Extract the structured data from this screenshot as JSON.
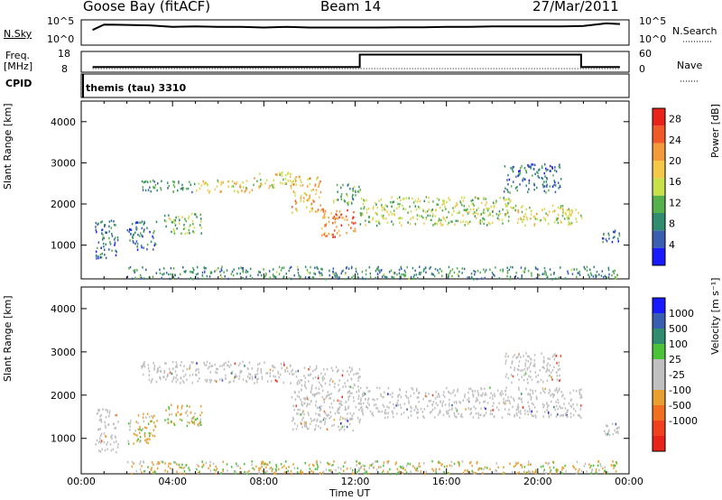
{
  "header": {
    "station": "Goose Bay (fitACF)",
    "beam": "Beam 14",
    "date": "27/Mar/2011"
  },
  "noise_panel": {
    "left_label": "N.Sky",
    "left_ticks": [
      "10^5",
      "10^0"
    ],
    "right_ticks": [
      "10^5",
      "10^0"
    ],
    "right_label": "N.Search"
  },
  "freq_panel": {
    "left_label_line1": "Freq.",
    "left_label_line2": "[MHz]",
    "left_ticks": [
      "18",
      "8"
    ],
    "right_ticks": [
      "60",
      "0"
    ],
    "right_label": "Nave",
    "cpid_label": "CPID"
  },
  "cpid_panel": {
    "mode_text": "themis (tau) 3310"
  },
  "colors": {
    "power_scale": [
      "#1a1aff",
      "#3b5fb0",
      "#2f8c6e",
      "#56b04c",
      "#c8e04a",
      "#f5c84a",
      "#f59a3a",
      "#f05a28",
      "#e8231a"
    ],
    "velocity_scale": [
      "#1a1aff",
      "#3b5fb0",
      "#2f8c6e",
      "#4cc23a",
      "#c0c0c0",
      "#c0c0c0",
      "#e8a030",
      "#f07020",
      "#f04020",
      "#e8231a"
    ],
    "ground_scatter": "#c0c0c0"
  },
  "chart_data": [
    {
      "type": "line",
      "title": "",
      "xlabel": "",
      "ylabel": "N.Sky",
      "xlim": [
        "00:00",
        "24:00"
      ],
      "series": [
        {
          "name": "N.Sky",
          "x": [
            0.5,
            1,
            2,
            3,
            4,
            5,
            6,
            7,
            8,
            9,
            10,
            11,
            12,
            13,
            14,
            15,
            16,
            17,
            18,
            19,
            20,
            21,
            22,
            23,
            23.6
          ],
          "values": [
            1000,
            12000,
            10000,
            8000,
            4000,
            5000,
            4000,
            4000,
            3000,
            4000,
            3000,
            3000,
            3000,
            3000,
            3500,
            3500,
            4000,
            4000,
            5000,
            5000,
            5000,
            5000,
            6000,
            20000,
            15000
          ]
        },
        {
          "name": "N.Search",
          "x": [
            0.5,
            1,
            2,
            3,
            4,
            5,
            6,
            7,
            8,
            9,
            10,
            11,
            12,
            13,
            14,
            15,
            16,
            17,
            18,
            19,
            20,
            21,
            22,
            23,
            23.6
          ],
          "values": [
            1000,
            10000,
            9000,
            7000,
            3500,
            4500,
            3500,
            3500,
            2800,
            3500,
            2800,
            2800,
            2800,
            2800,
            3200,
            3200,
            3600,
            3600,
            4500,
            4500,
            4500,
            4500,
            5500,
            18000,
            14000
          ]
        }
      ],
      "yscale": "log",
      "ylim": [
        1,
        100000
      ]
    },
    {
      "type": "line",
      "title": "",
      "xlabel": "",
      "ylabel": "Freq. [MHz]",
      "xlim": [
        "00:00",
        "24:00"
      ],
      "series": [
        {
          "name": "Freq.",
          "x": [
            0.5,
            12.2,
            12.2,
            21.9,
            21.9,
            23.6
          ],
          "values": [
            10.5,
            10.5,
            16.5,
            16.5,
            10.5,
            10.5
          ]
        },
        {
          "name": "Nave",
          "x": [
            0.5,
            23.6
          ],
          "values": [
            8,
            8
          ]
        }
      ],
      "ylim": [
        8,
        18
      ],
      "y2lim": [
        0,
        60
      ]
    },
    {
      "type": "heatmap",
      "title": "",
      "xlabel": "",
      "ylabel": "Slant Range [km]",
      "xlim": [
        "00:00",
        "24:00"
      ],
      "ylim": [
        180,
        4500
      ],
      "x_ticks": [
        "00:00",
        "04:00",
        "08:00",
        "12:00",
        "16:00",
        "20:00",
        "00:00"
      ],
      "y_ticks": [
        "1000",
        "2000",
        "3000",
        "4000"
      ],
      "colorbar": {
        "label": "Power [dB]",
        "ticks": [
          "4",
          "8",
          "12",
          "16",
          "20",
          "24",
          "28"
        ],
        "range": [
          0,
          30
        ]
      },
      "scatter_bands": [
        {
          "t": [
            0.6,
            1.6
          ],
          "r": [
            700,
            1700
          ],
          "power": 6
        },
        {
          "t": [
            2.0,
            3.3
          ],
          "r": [
            900,
            1600
          ],
          "power": 6
        },
        {
          "t": [
            3.6,
            5.3
          ],
          "r": [
            1300,
            1800
          ],
          "power": 12
        },
        {
          "t": [
            2.6,
            5.0
          ],
          "r": [
            2300,
            2600
          ],
          "power": 8
        },
        {
          "t": [
            5.0,
            7.5
          ],
          "r": [
            2300,
            2600
          ],
          "power": 18
        },
        {
          "t": [
            7.5,
            9.2
          ],
          "r": [
            2400,
            2800
          ],
          "power": 16
        },
        {
          "t": [
            9.2,
            10.5
          ],
          "r": [
            1800,
            2700
          ],
          "power": 20
        },
        {
          "t": [
            10.5,
            12.0
          ],
          "r": [
            1200,
            1900
          ],
          "power": 24
        },
        {
          "t": [
            11.0,
            12.2
          ],
          "r": [
            2000,
            2500
          ],
          "power": 10
        },
        {
          "t": [
            12.2,
            16.0
          ],
          "r": [
            1500,
            2200
          ],
          "power": 14
        },
        {
          "t": [
            16.0,
            19.0
          ],
          "r": [
            1500,
            2200
          ],
          "power": 14
        },
        {
          "t": [
            19.0,
            21.9
          ],
          "r": [
            1500,
            2000
          ],
          "power": 16
        },
        {
          "t": [
            18.5,
            21.0
          ],
          "r": [
            2300,
            3000
          ],
          "power": 6
        },
        {
          "t": [
            22.8,
            23.6
          ],
          "r": [
            1100,
            1400
          ],
          "power": 6
        },
        {
          "t": [
            2.0,
            23.5
          ],
          "r": [
            200,
            500
          ],
          "power": 8
        }
      ]
    },
    {
      "type": "heatmap",
      "title": "",
      "xlabel": "Time UT",
      "ylabel": "Slant Range [km]",
      "xlim": [
        "00:00",
        "24:00"
      ],
      "ylim": [
        180,
        4500
      ],
      "x_ticks": [
        "00:00",
        "04:00",
        "08:00",
        "12:00",
        "16:00",
        "20:00",
        "00:00"
      ],
      "y_ticks": [
        "1000",
        "2000",
        "3000",
        "4000"
      ],
      "colorbar": {
        "label": "Velocity [m s⁻¹]",
        "ticks": [
          "1000",
          "500",
          "100",
          "25",
          "-25",
          "-100",
          "-500",
          "-1000"
        ]
      },
      "scatter_bands": [
        {
          "t": [
            0.6,
            1.6
          ],
          "r": [
            700,
            1700
          ],
          "velocity": "ground"
        },
        {
          "t": [
            2.0,
            3.3
          ],
          "r": [
            900,
            1600
          ],
          "velocity": -300
        },
        {
          "t": [
            3.6,
            5.3
          ],
          "r": [
            1300,
            1800
          ],
          "velocity": -200
        },
        {
          "t": [
            2.6,
            9.2
          ],
          "r": [
            2300,
            2800
          ],
          "velocity": "ground"
        },
        {
          "t": [
            9.2,
            12.2
          ],
          "r": [
            1200,
            2700
          ],
          "velocity": "ground"
        },
        {
          "t": [
            12.2,
            21.9
          ],
          "r": [
            1500,
            2200
          ],
          "velocity": "ground"
        },
        {
          "t": [
            18.5,
            21.0
          ],
          "r": [
            2300,
            3000
          ],
          "velocity": "ground"
        },
        {
          "t": [
            22.8,
            23.6
          ],
          "r": [
            1100,
            1400
          ],
          "velocity": "ground"
        },
        {
          "t": [
            2.0,
            23.5
          ],
          "r": [
            200,
            500
          ],
          "velocity": 50
        }
      ]
    }
  ]
}
